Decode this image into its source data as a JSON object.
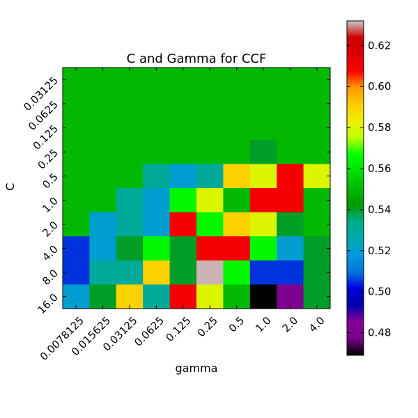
{
  "chart_data": {
    "type": "heatmap",
    "title": "C and Gamma for CCF",
    "xlabel": "gamma",
    "ylabel": "C",
    "x_categories": [
      "0.0078125",
      "0.015625",
      "0.03125",
      "0.0625",
      "0.125",
      "0.25",
      "0.5",
      "1.0",
      "2.0",
      "4.0"
    ],
    "y_categories": [
      "0.03125",
      "0.0625",
      "0.125",
      "0.25",
      "0.5",
      "1.0",
      "2.0",
      "4.0",
      "8.0",
      "16.0"
    ],
    "values": [
      [
        0.55,
        0.55,
        0.55,
        0.55,
        0.55,
        0.55,
        0.55,
        0.55,
        0.55,
        0.55
      ],
      [
        0.55,
        0.55,
        0.55,
        0.55,
        0.55,
        0.55,
        0.55,
        0.55,
        0.55,
        0.55
      ],
      [
        0.55,
        0.55,
        0.55,
        0.55,
        0.55,
        0.55,
        0.55,
        0.55,
        0.55,
        0.55
      ],
      [
        0.55,
        0.55,
        0.55,
        0.55,
        0.55,
        0.55,
        0.55,
        0.54,
        0.55,
        0.55
      ],
      [
        0.55,
        0.55,
        0.55,
        0.53,
        0.52,
        0.53,
        0.59,
        0.58,
        0.61,
        0.58
      ],
      [
        0.55,
        0.55,
        0.53,
        0.52,
        0.565,
        0.58,
        0.55,
        0.61,
        0.61,
        0.55
      ],
      [
        0.55,
        0.52,
        0.53,
        0.52,
        0.61,
        0.565,
        0.59,
        0.58,
        0.54,
        0.55
      ],
      [
        0.505,
        0.52,
        0.54,
        0.565,
        0.54,
        0.61,
        0.61,
        0.565,
        0.52,
        0.54
      ],
      [
        0.505,
        0.53,
        0.53,
        0.59,
        0.54,
        0.631,
        0.565,
        0.505,
        0.505,
        0.54
      ],
      [
        0.52,
        0.54,
        0.59,
        0.53,
        0.61,
        0.58,
        0.55,
        0.469,
        0.48,
        0.54
      ]
    ],
    "colorbar": {
      "colormap": "nipy_spectral",
      "vmin": 0.469,
      "vmax": 0.632,
      "ticks": [
        "0.48",
        "0.50",
        "0.52",
        "0.54",
        "0.56",
        "0.58",
        "0.60",
        "0.62"
      ]
    },
    "grid": false
  }
}
